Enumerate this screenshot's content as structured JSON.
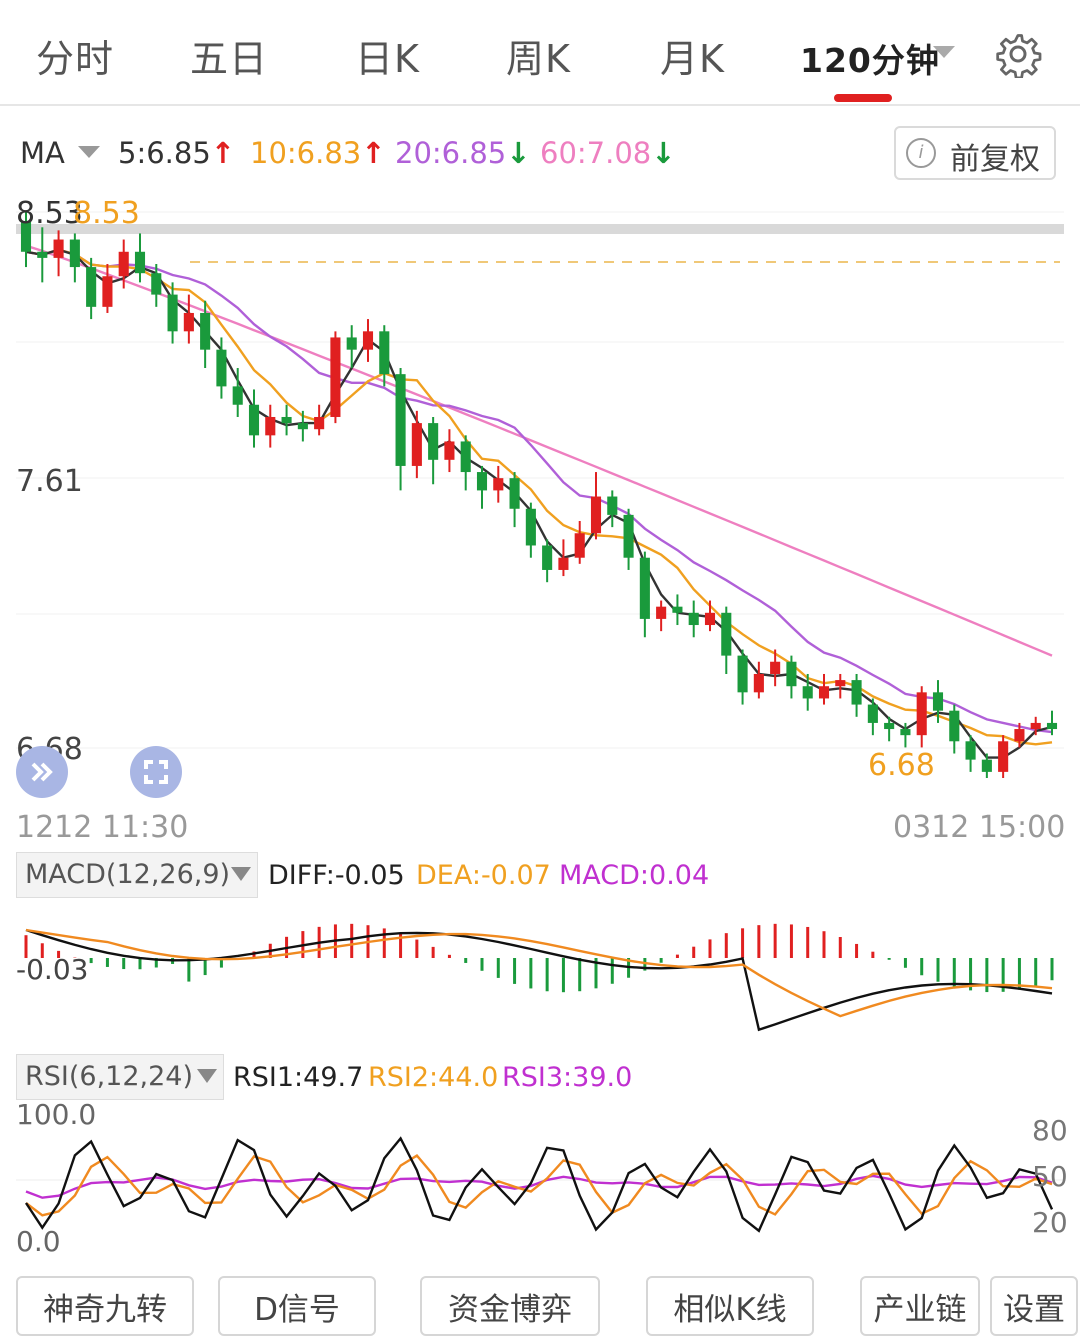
{
  "tabs": [
    {
      "label": "分时"
    },
    {
      "label": "五日"
    },
    {
      "label": "日K"
    },
    {
      "label": "周K"
    },
    {
      "label": "月K"
    },
    {
      "label": "120分钟"
    }
  ],
  "active_tab": "120分钟",
  "ma_bar": {
    "selector": "MA",
    "items": [
      {
        "text": "5:6.85↑",
        "color": "#333333"
      },
      {
        "text": "10:6.83↑",
        "color": "#f0a020"
      },
      {
        "text": "20:6.85↓",
        "color": "#b060d8"
      },
      {
        "text": "60:7.08↓",
        "color": "#ee7fc0"
      }
    ],
    "arrow_up_color": "#e02020",
    "arrow_down_color": "#1a9a3c",
    "adjust_button": "前复权"
  },
  "price_chart": {
    "max_label_left": "8.53",
    "max_label_right": "8.53",
    "mid_label": "7.61",
    "low_label": "6.68",
    "min_marker": "6.68",
    "start_time": "1212 11:30",
    "end_time": "0312 15:00"
  },
  "macd": {
    "selector": "MACD(12,26,9)",
    "diff": "DIFF:-0.05",
    "dea": "DEA:-0.07",
    "macd": "MACD:0.04",
    "axis_label": "-0.03"
  },
  "rsi": {
    "selector": "RSI(6,12,24)",
    "rsi1": "RSI1:49.7",
    "rsi2": "RSI2:44.0",
    "rsi3": "RSI3:39.0",
    "top_label": "100.0",
    "bottom_label": "0.0",
    "right_labels": [
      "80",
      "50",
      "20"
    ]
  },
  "toolbar": [
    "神奇九转",
    "D信号",
    "资金博弈",
    "相似K线",
    "产业链",
    "设置"
  ],
  "colors": {
    "up": "#e02020",
    "down": "#1a9a3c",
    "ma5": "#333333",
    "ma10": "#f0a020",
    "ma20": "#b060d8",
    "ma60": "#ee7fc0"
  },
  "chart_data": {
    "type": "candlestick",
    "period": "120分钟",
    "y_range": [
      6.68,
      8.53
    ],
    "candles": [
      [
        8.5,
        8.4,
        8.53,
        8.35
      ],
      [
        8.4,
        8.38,
        8.48,
        8.3
      ],
      [
        8.38,
        8.44,
        8.47,
        8.32
      ],
      [
        8.44,
        8.35,
        8.46,
        8.3
      ],
      [
        8.35,
        8.22,
        8.38,
        8.18
      ],
      [
        8.22,
        8.32,
        8.36,
        8.2
      ],
      [
        8.32,
        8.4,
        8.44,
        8.28
      ],
      [
        8.4,
        8.33,
        8.46,
        8.3
      ],
      [
        8.33,
        8.26,
        8.36,
        8.22
      ],
      [
        8.26,
        8.14,
        8.3,
        8.1
      ],
      [
        8.14,
        8.2,
        8.26,
        8.1
      ],
      [
        8.2,
        8.08,
        8.24,
        8.02
      ],
      [
        8.08,
        7.96,
        8.12,
        7.92
      ],
      [
        7.96,
        7.9,
        8.02,
        7.86
      ],
      [
        7.9,
        7.8,
        7.95,
        7.76
      ],
      [
        7.8,
        7.86,
        7.9,
        7.76
      ],
      [
        7.86,
        7.84,
        7.9,
        7.8
      ],
      [
        7.84,
        7.82,
        7.88,
        7.78
      ],
      [
        7.82,
        7.86,
        7.9,
        7.8
      ],
      [
        7.86,
        8.12,
        8.14,
        7.84
      ],
      [
        8.12,
        8.08,
        8.16,
        8.02
      ],
      [
        8.08,
        8.14,
        8.18,
        8.04
      ],
      [
        8.14,
        8.0,
        8.16,
        7.96
      ],
      [
        8.0,
        7.7,
        8.02,
        7.62
      ],
      [
        7.7,
        7.84,
        7.88,
        7.66
      ],
      [
        7.84,
        7.72,
        7.86,
        7.64
      ],
      [
        7.72,
        7.78,
        7.82,
        7.68
      ],
      [
        7.78,
        7.68,
        7.8,
        7.62
      ],
      [
        7.68,
        7.62,
        7.7,
        7.56
      ],
      [
        7.62,
        7.66,
        7.7,
        7.58
      ],
      [
        7.66,
        7.56,
        7.68,
        7.5
      ],
      [
        7.56,
        7.44,
        7.58,
        7.4
      ],
      [
        7.44,
        7.36,
        7.46,
        7.32
      ],
      [
        7.36,
        7.4,
        7.46,
        7.34
      ],
      [
        7.4,
        7.48,
        7.52,
        7.38
      ],
      [
        7.48,
        7.6,
        7.68,
        7.46
      ],
      [
        7.6,
        7.54,
        7.62,
        7.5
      ],
      [
        7.54,
        7.4,
        7.56,
        7.36
      ],
      [
        7.4,
        7.2,
        7.42,
        7.14
      ],
      [
        7.2,
        7.24,
        7.26,
        7.16
      ],
      [
        7.24,
        7.22,
        7.28,
        7.18
      ],
      [
        7.22,
        7.18,
        7.26,
        7.14
      ],
      [
        7.18,
        7.22,
        7.26,
        7.16
      ],
      [
        7.22,
        7.08,
        7.24,
        7.02
      ],
      [
        7.08,
        6.96,
        7.1,
        6.92
      ],
      [
        6.96,
        7.02,
        7.06,
        6.94
      ],
      [
        7.02,
        7.06,
        7.1,
        6.98
      ],
      [
        7.06,
        6.98,
        7.08,
        6.94
      ],
      [
        6.98,
        6.94,
        7.02,
        6.9
      ],
      [
        6.94,
        6.98,
        7.02,
        6.92
      ],
      [
        6.98,
        7.0,
        7.02,
        6.94
      ],
      [
        7.0,
        6.92,
        7.02,
        6.88
      ],
      [
        6.92,
        6.86,
        6.94,
        6.82
      ],
      [
        6.86,
        6.84,
        6.88,
        6.8
      ],
      [
        6.84,
        6.82,
        6.86,
        6.78
      ],
      [
        6.82,
        6.96,
        6.98,
        6.78
      ],
      [
        6.96,
        6.9,
        7.0,
        6.86
      ],
      [
        6.9,
        6.8,
        6.92,
        6.76
      ],
      [
        6.8,
        6.74,
        6.82,
        6.7
      ],
      [
        6.74,
        6.7,
        6.76,
        6.68
      ],
      [
        6.7,
        6.8,
        6.82,
        6.68
      ],
      [
        6.8,
        6.84,
        6.86,
        6.78
      ],
      [
        6.84,
        6.86,
        6.88,
        6.82
      ],
      [
        6.86,
        6.84,
        6.9,
        6.82
      ]
    ]
  }
}
